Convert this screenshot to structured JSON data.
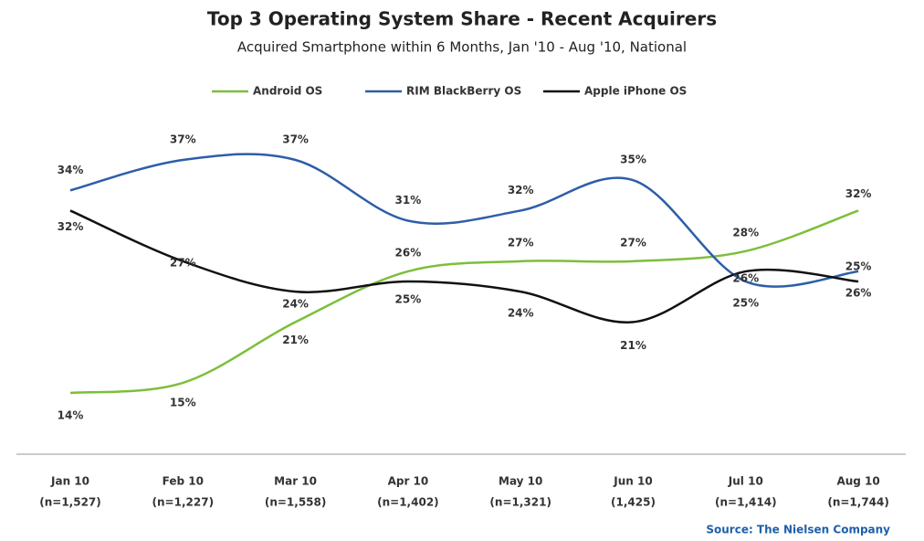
{
  "chart_data": {
    "type": "line",
    "title": "Top 3 Operating System Share - Recent Acquirers",
    "subtitle": "Acquired Smartphone within 6 Months, Jan '10 - Aug '10, National",
    "categories": [
      "Jan 10",
      "Feb 10",
      "Mar 10",
      "Apr 10",
      "May 10",
      "Jun 10",
      "Jul 10",
      "Aug 10"
    ],
    "sample_sizes": [
      "(n=1,527)",
      "(n=1,227)",
      "(n=1,558)",
      "(n=1,402)",
      "(n=1,321)",
      "(1,425)",
      "(n=1,414)",
      "(n=1,744)"
    ],
    "series": [
      {
        "name": "Android OS",
        "color": "#7cbf3a",
        "values": [
          14,
          15,
          21,
          26,
          27,
          27,
          28,
          32
        ],
        "value_labels": [
          "14%",
          "15%",
          "21%",
          "26%",
          "27%",
          "27%",
          "28%",
          "32%"
        ]
      },
      {
        "name": "RIM BlackBerry OS",
        "color": "#2d5ea8",
        "values": [
          34,
          37,
          37,
          31,
          32,
          35,
          25,
          26
        ],
        "value_labels": [
          "34%",
          "37%",
          "37%",
          "31%",
          "32%",
          "35%",
          "25%",
          "26%"
        ]
      },
      {
        "name": "Apple iPhone OS",
        "color": "#111111",
        "values": [
          32,
          27,
          24,
          25,
          24,
          21,
          26,
          25
        ],
        "value_labels": [
          "32%",
          "27%",
          "24%",
          "25%",
          "24%",
          "21%",
          "26%",
          "25%"
        ]
      }
    ],
    "legend": "top",
    "source": "Source: The Nielsen Company"
  }
}
